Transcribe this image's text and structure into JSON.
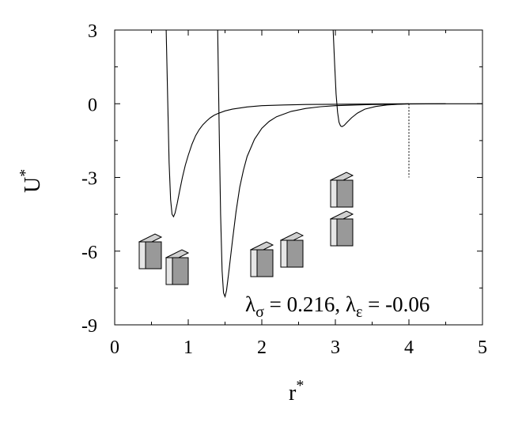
{
  "chart_data": {
    "type": "line",
    "title": "",
    "xlabel": "r",
    "xlabel_sup": "*",
    "ylabel": "U",
    "ylabel_sup": "*",
    "xlim": [
      0,
      5
    ],
    "ylim": [
      -9,
      3
    ],
    "xticks": [
      0,
      1,
      2,
      3,
      4,
      5
    ],
    "yticks": [
      3,
      0,
      -3,
      -6,
      -9
    ],
    "grid": false,
    "annotation": {
      "sym1": "λ",
      "sub1": "σ",
      "val1": " = 0.216, ",
      "sym2": "λ",
      "sub2": "ε",
      "val2": " = -0.06"
    },
    "cutoff_line": {
      "x": 4,
      "y_from": 0,
      "y_to": -3
    },
    "series": [
      {
        "x": [
          0.7,
          0.72,
          0.74,
          0.76,
          0.78,
          0.8,
          0.82,
          0.85,
          0.88,
          0.92,
          0.96,
          1.0,
          1.05,
          1.1,
          1.15,
          1.2,
          1.25,
          1.3,
          1.35,
          1.4,
          1.5,
          1.6,
          1.8,
          2.0,
          2.3,
          2.6,
          3.0,
          3.5,
          4.0
        ],
        "y": [
          3.0,
          0.2,
          -2.4,
          -3.9,
          -4.5,
          -4.6,
          -4.45,
          -4.05,
          -3.6,
          -3.0,
          -2.5,
          -2.1,
          -1.65,
          -1.3,
          -1.05,
          -0.85,
          -0.7,
          -0.57,
          -0.47,
          -0.4,
          -0.29,
          -0.22,
          -0.13,
          -0.08,
          -0.05,
          -0.03,
          -0.02,
          -0.01,
          0.0
        ]
      },
      {
        "x": [
          1.4,
          1.42,
          1.44,
          1.46,
          1.48,
          1.5,
          1.52,
          1.55,
          1.6,
          1.65,
          1.7,
          1.75,
          1.8,
          1.9,
          2.0,
          2.1,
          2.2,
          2.4,
          2.6,
          2.8,
          3.0,
          3.5,
          4.0,
          4.5
        ],
        "y": [
          3.0,
          -1.0,
          -4.5,
          -6.8,
          -7.7,
          -7.85,
          -7.6,
          -6.9,
          -5.6,
          -4.4,
          -3.4,
          -2.7,
          -2.15,
          -1.45,
          -1.0,
          -0.72,
          -0.53,
          -0.31,
          -0.19,
          -0.12,
          -0.08,
          -0.03,
          -0.01,
          0.0
        ]
      },
      {
        "x": [
          2.97,
          2.99,
          3.01,
          3.03,
          3.05,
          3.07,
          3.09,
          3.12,
          3.16,
          3.22,
          3.3,
          3.4,
          3.55,
          3.7,
          3.85,
          4.0,
          4.5,
          5.0
        ],
        "y": [
          3.0,
          1.6,
          0.4,
          -0.35,
          -0.75,
          -0.9,
          -0.93,
          -0.88,
          -0.75,
          -0.57,
          -0.38,
          -0.22,
          -0.11,
          -0.05,
          -0.02,
          0.0,
          0.0,
          0.0
        ]
      }
    ]
  }
}
